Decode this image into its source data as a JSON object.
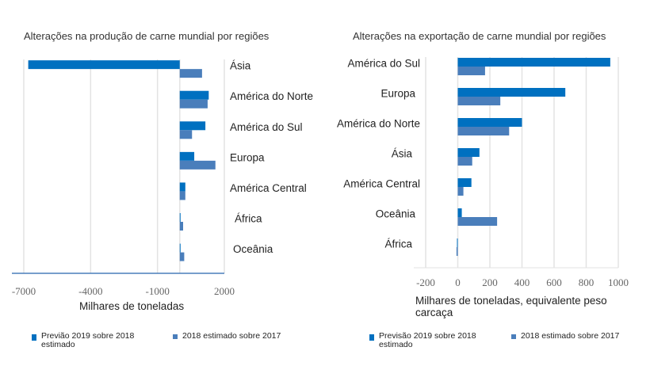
{
  "colors": {
    "forecast": "#0070c0",
    "estimate": "#4a7ebb",
    "grid": "#e3e3e3",
    "axis": "#4a7ebb"
  },
  "chart_data": [
    {
      "type": "bar",
      "orientation": "horizontal",
      "title": "Alterações na produção de carne mundial por regiões",
      "xlabel": "Milhares de toneladas",
      "xlim": [
        -7000,
        2000
      ],
      "ticks": [
        "-7000",
        "-4000",
        "-1000",
        "2000"
      ],
      "tick_values": [
        -7000,
        -4000,
        -1000,
        2000
      ],
      "grid": true,
      "categories": [
        "Ásia",
        "América do Norte",
        "América do Sul",
        "Europa",
        "América Central",
        "África",
        "Oceânia"
      ],
      "series": [
        {
          "name": "Previão 2019 sobre 2018 estimado",
          "values": [
            -6800,
            1300,
            1150,
            650,
            250,
            10,
            0
          ]
        },
        {
          "name": "2018 estimado sobre 2017",
          "values": [
            1000,
            1250,
            550,
            1600,
            250,
            150,
            200
          ]
        }
      ],
      "legend_position": "bottom"
    },
    {
      "type": "bar",
      "orientation": "horizontal",
      "title": "Alterações na exportação de carne mundial por regiões",
      "xlabel": "Milhares de toneladas, equivalente peso carcaça",
      "xlim": [
        -200,
        1000
      ],
      "ticks": [
        "-200",
        "0",
        "200",
        "400",
        "600",
        "800",
        "1000"
      ],
      "tick_values": [
        -200,
        0,
        200,
        400,
        600,
        800,
        1000
      ],
      "grid": true,
      "categories": [
        "América do Sul",
        "Europa",
        "América do Norte",
        "Ásia",
        "América Central",
        "Oceânia",
        "África"
      ],
      "series": [
        {
          "name": "Previsão 2019 sobre 2018 estimado",
          "values": [
            950,
            670,
            400,
            135,
            85,
            25,
            -5
          ]
        },
        {
          "name": "2018 estimado sobre 2017",
          "values": [
            170,
            265,
            320,
            90,
            35,
            245,
            -8
          ]
        }
      ],
      "legend_position": "bottom"
    }
  ]
}
